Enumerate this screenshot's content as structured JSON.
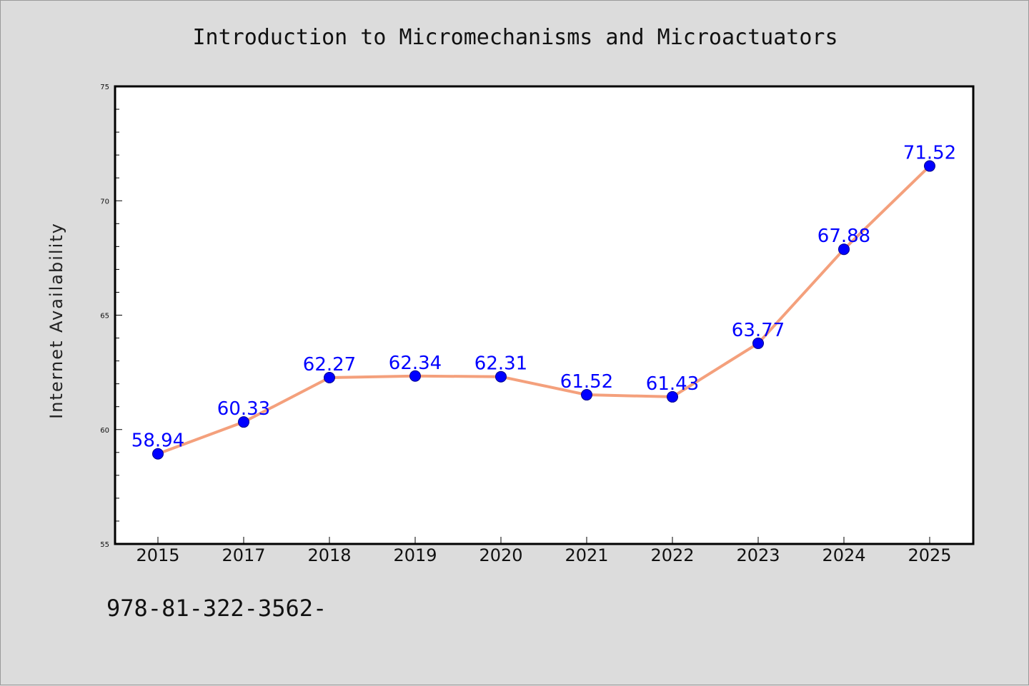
{
  "chart_data": {
    "type": "line",
    "title": "Introduction to Micromechanisms and Microactuators",
    "xlabel": "",
    "ylabel": "Internet Availability",
    "categories": [
      "2015",
      "2017",
      "2018",
      "2019",
      "2020",
      "2021",
      "2022",
      "2023",
      "2024",
      "2025"
    ],
    "series": [
      {
        "values": [
          58.94,
          60.33,
          62.27,
          62.34,
          62.31,
          61.52,
          61.43,
          63.77,
          67.88,
          71.52
        ],
        "data_labels": [
          "58.94",
          "60.33",
          "62.27",
          "62.34",
          "62.31",
          "61.52",
          "61.43",
          "63.77",
          "67.88",
          "71.52"
        ]
      }
    ],
    "ylim": [
      55,
      75
    ],
    "yticks": [
      "55",
      "60",
      "65",
      "70",
      "75"
    ],
    "ytick_values": [
      55,
      60,
      65,
      70,
      75
    ],
    "grid": false,
    "legend": "none",
    "colors": {
      "line": "#f4a07c",
      "marker": "#0000ff",
      "data_label": "#0000ff",
      "background": "#dcdcdc",
      "plot_area": "#ffffff"
    }
  },
  "footer": {
    "isbn": "978-81-322-3562-"
  }
}
